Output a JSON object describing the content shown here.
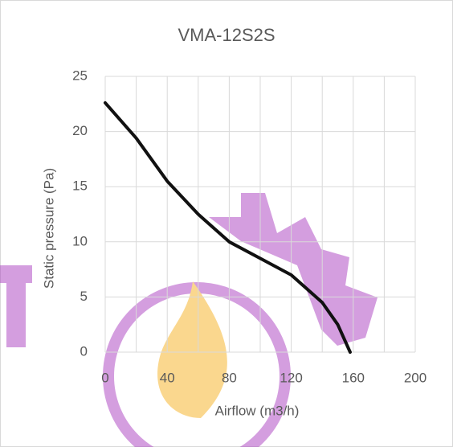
{
  "chart_data": {
    "type": "line",
    "title": "VMA-12S2S",
    "x_label": "Airflow (m3/h)",
    "y_label": "Static pressure (Pa)",
    "x": [
      0,
      20,
      40,
      60,
      80,
      100,
      120,
      140,
      150,
      158
    ],
    "series": [
      {
        "name": "VMA-12S2S",
        "color": "#111111",
        "values": [
          22.6,
          19.4,
          15.5,
          12.5,
          10,
          8.5,
          7,
          4.5,
          2.5,
          0
        ]
      }
    ],
    "xlim": [
      0,
      200
    ],
    "xticks": [
      0,
      40,
      80,
      120,
      160,
      200
    ],
    "x_minor_grid": [
      20,
      60,
      100,
      140,
      180
    ],
    "ylim": [
      0,
      25
    ],
    "yticks": [
      0,
      5,
      10,
      15,
      20,
      25
    ],
    "grid": true
  }
}
